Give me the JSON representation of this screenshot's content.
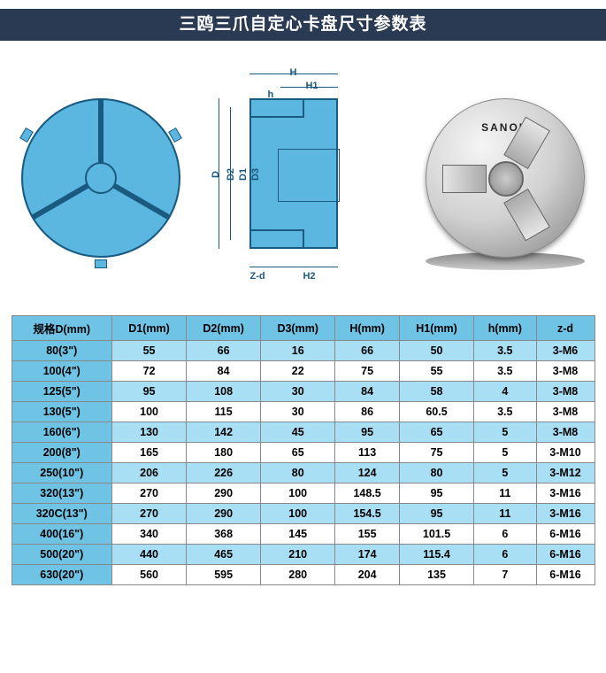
{
  "title": "三鸥三爪自定心卡盘尺寸参数表",
  "diagram": {
    "labels": {
      "H": "H",
      "H1": "H1",
      "h": "h",
      "D": "D",
      "D1": "D1",
      "D2": "D2",
      "D3": "D3",
      "Zd": "Z-d",
      "H2": "H2"
    },
    "front_color": "#5bb6e0",
    "line_color": "#1a5a80",
    "brand": "SANOU"
  },
  "table": {
    "columns": [
      "规格D(mm)",
      "D1(mm)",
      "D2(mm)",
      "D3(mm)",
      "H(mm)",
      "H1(mm)",
      "h(mm)",
      "z-d"
    ],
    "rows": [
      [
        "80(3\")",
        "55",
        "66",
        "16",
        "66",
        "50",
        "3.5",
        "3-M6"
      ],
      [
        "100(4\")",
        "72",
        "84",
        "22",
        "75",
        "55",
        "3.5",
        "3-M8"
      ],
      [
        "125(5\")",
        "95",
        "108",
        "30",
        "84",
        "58",
        "4",
        "3-M8"
      ],
      [
        "130(5\")",
        "100",
        "115",
        "30",
        "86",
        "60.5",
        "3.5",
        "3-M8"
      ],
      [
        "160(6\")",
        "130",
        "142",
        "45",
        "95",
        "65",
        "5",
        "3-M8"
      ],
      [
        "200(8\")",
        "165",
        "180",
        "65",
        "113",
        "75",
        "5",
        "3-M10"
      ],
      [
        "250(10\")",
        "206",
        "226",
        "80",
        "124",
        "80",
        "5",
        "3-M12"
      ],
      [
        "320(13\")",
        "270",
        "290",
        "100",
        "148.5",
        "95",
        "11",
        "3-M16"
      ],
      [
        "320C(13\")",
        "270",
        "290",
        "100",
        "154.5",
        "95",
        "11",
        "3-M16"
      ],
      [
        "400(16\")",
        "340",
        "368",
        "145",
        "155",
        "101.5",
        "6",
        "6-M16"
      ],
      [
        "500(20\")",
        "440",
        "465",
        "210",
        "174",
        "115.4",
        "6",
        "6-M16"
      ],
      [
        "630(20\")",
        "560",
        "595",
        "280",
        "204",
        "135",
        "7",
        "6-M16"
      ]
    ],
    "header_bg": "#6fc4e6",
    "alt_row_bg": "#a9dff5",
    "row_bg": "#ffffff",
    "border_color": "#888888",
    "font_size": 12.5
  }
}
